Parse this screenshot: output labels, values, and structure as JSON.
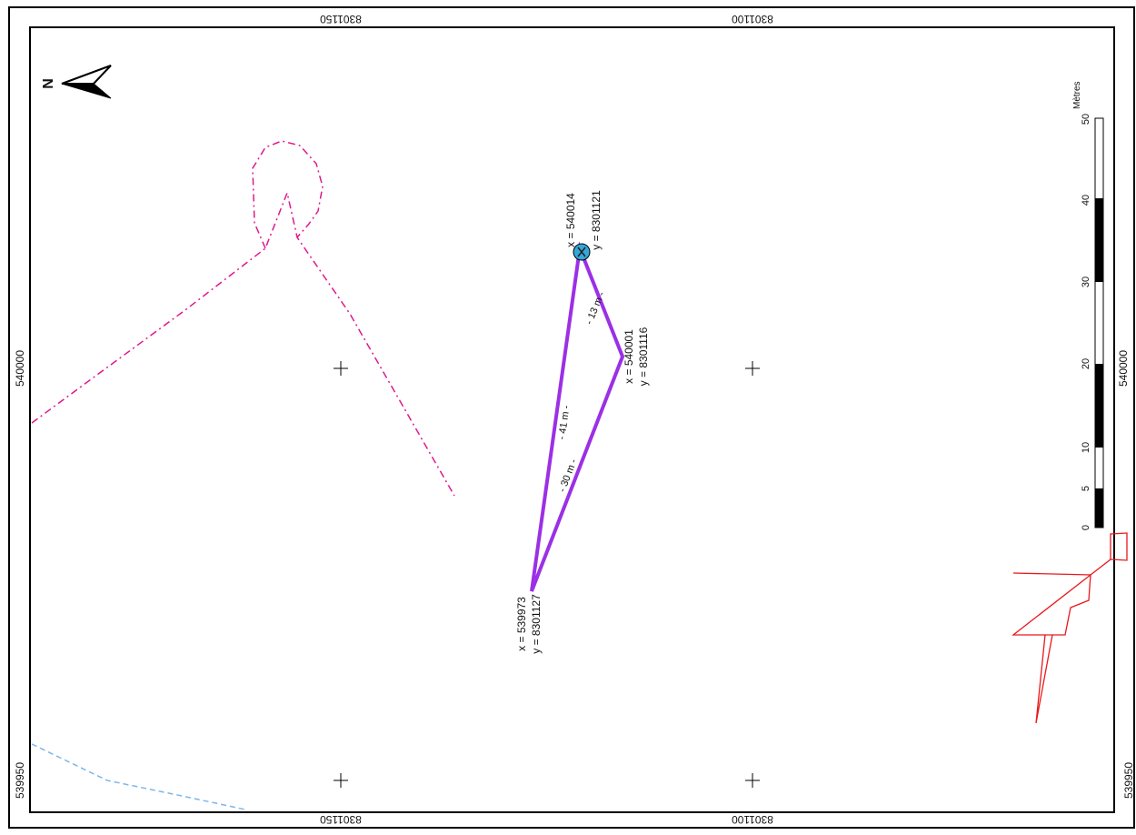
{
  "map": {
    "grid_labels": {
      "top_left": "8301150",
      "top_right": "8301100",
      "bottom_left": "8301150",
      "bottom_right": "8301100",
      "left_upper": "540000",
      "left_lower": "539950",
      "right_upper": "540000",
      "right_lower": "539950"
    },
    "north_arrow": {
      "letter": "N"
    },
    "scale_bar": {
      "unit": "Mètres",
      "ticks": [
        "0",
        "5",
        "10",
        "20",
        "30",
        "40",
        "50"
      ]
    },
    "survey_points": {
      "point_a": {
        "x_label": "x = 540014",
        "y_label": "y = 8301121"
      },
      "point_b": {
        "x_label": "x = 540001",
        "y_label": "y = 8301116"
      },
      "point_c": {
        "x_label": "x = 539973",
        "y_label": "y = 8301127"
      }
    },
    "distances": {
      "ab": "- 13 m -",
      "ac": "- 41 m -",
      "bc": "- 30 m -"
    },
    "colors": {
      "triangle": "#9b30e6",
      "point_marker": "#35a7d9",
      "pink_line": "#e0188e",
      "blue_line": "#7db6ea",
      "red_line": "#e8191c",
      "frame": "#000000"
    }
  }
}
